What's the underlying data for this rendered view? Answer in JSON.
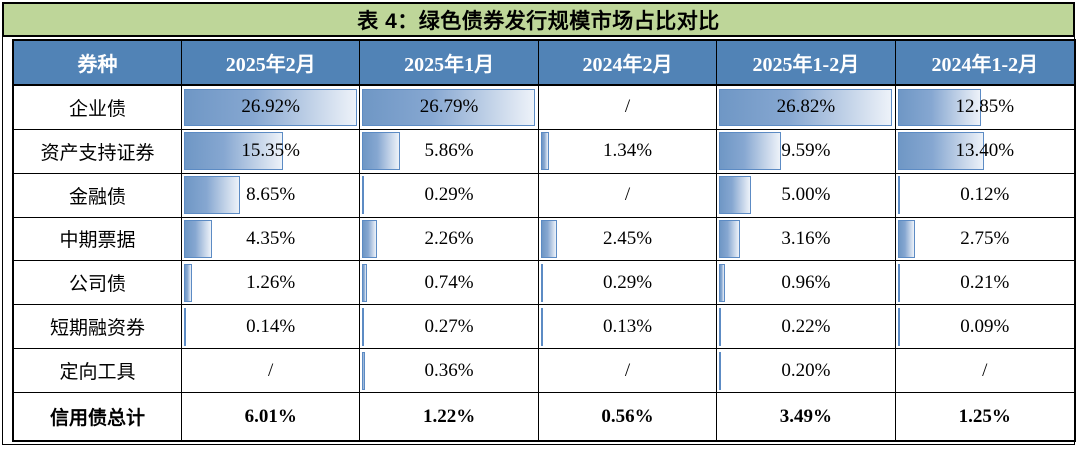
{
  "title": "表 4：绿色债券发行规模市场占比对比",
  "colors": {
    "title_bg": "#bed699",
    "header_bg": "#5183b6",
    "header_text": "#ffffff",
    "bar_fill_dark": "#6f97c5",
    "bar_fill_light": "#edf2f9",
    "bar_border": "#5c8bc4",
    "grid_border": "#000000"
  },
  "chart_data": {
    "type": "table",
    "title": "表 4：绿色债券发行规模市场占比对比",
    "columns": [
      "券种",
      "2025年2月",
      "2025年1月",
      "2024年2月",
      "2025年1-2月",
      "2024年1-2月"
    ],
    "rows": [
      {
        "label": "企业债",
        "is_total": false,
        "values": [
          "26.92%",
          "26.79%",
          "/",
          "26.82%",
          "12.85%"
        ]
      },
      {
        "label": "资产支持证券",
        "is_total": false,
        "values": [
          "15.35%",
          "5.86%",
          "1.34%",
          "9.59%",
          "13.40%"
        ]
      },
      {
        "label": "金融债",
        "is_total": false,
        "values": [
          "8.65%",
          "0.29%",
          "/",
          "5.00%",
          "0.12%"
        ]
      },
      {
        "label": "中期票据",
        "is_total": false,
        "values": [
          "4.35%",
          "2.26%",
          "2.45%",
          "3.16%",
          "2.75%"
        ]
      },
      {
        "label": "公司债",
        "is_total": false,
        "values": [
          "1.26%",
          "0.74%",
          "0.29%",
          "0.96%",
          "0.21%"
        ]
      },
      {
        "label": "短期融资券",
        "is_total": false,
        "values": [
          "0.14%",
          "0.27%",
          "0.13%",
          "0.22%",
          "0.09%"
        ]
      },
      {
        "label": "定向工具",
        "is_total": false,
        "values": [
          "/",
          "0.36%",
          "/",
          "0.20%",
          "/"
        ]
      },
      {
        "label": "信用债总计",
        "is_total": true,
        "values": [
          "6.01%",
          "1.22%",
          "0.56%",
          "3.49%",
          "1.25%"
        ]
      }
    ],
    "bar_axis_max_percent": 26.92,
    "bar_style": "gradient-blue-data-bars",
    "missing_value_symbol": "/",
    "legend_position": "none",
    "grid": "all-borders"
  }
}
